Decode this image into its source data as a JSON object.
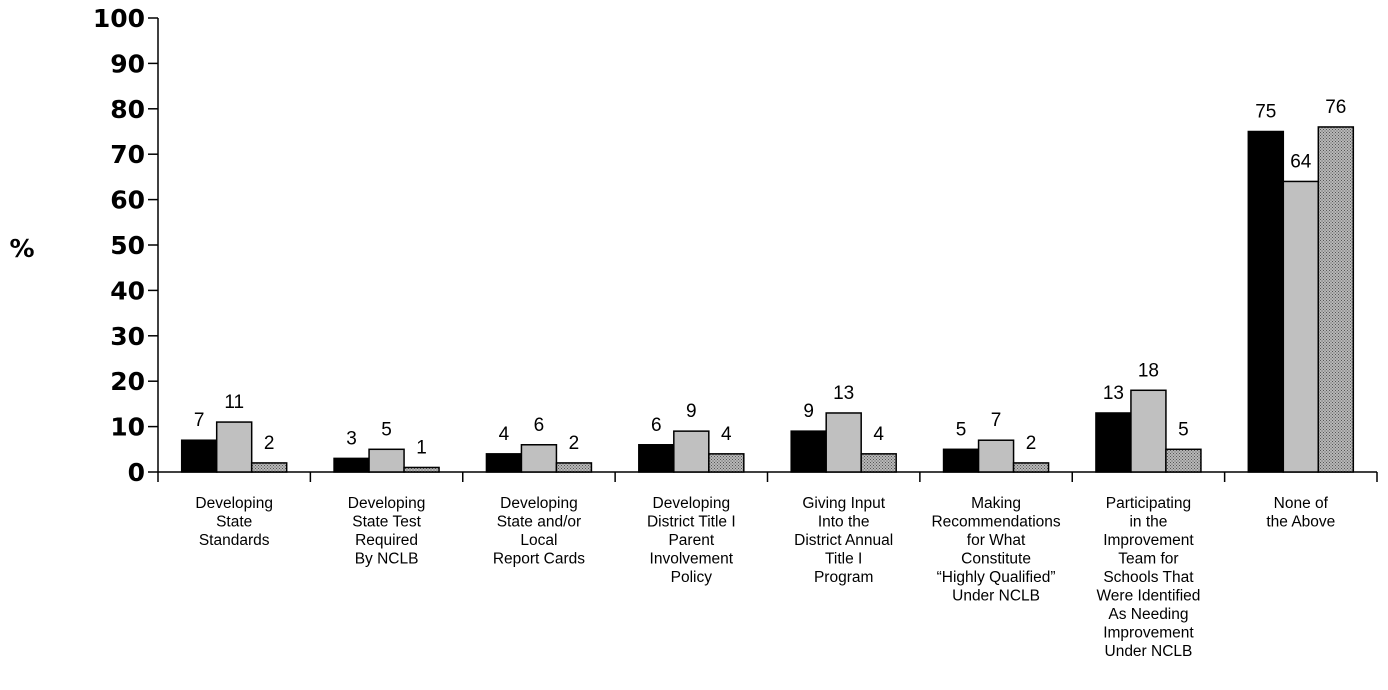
{
  "chart_data": {
    "type": "bar",
    "title": "",
    "xlabel": "",
    "ylabel": "%",
    "ylim": [
      0,
      100
    ],
    "yticks": [
      0,
      10,
      20,
      30,
      40,
      50,
      60,
      70,
      80,
      90,
      100
    ],
    "grid": false,
    "legend": "none",
    "categories": [
      "Developing State Standards",
      "Developing State Test Required By NCLB",
      "Developing State and/or Local Report Cards",
      "Developing District Title I Parent Involvement Policy",
      "Giving Input Into the District Annual Title I Program",
      "Making Recommendations for What Constitute “Highly Qualified” Under NCLB",
      "Participating in the Improvement Team for Schools That Were Identified As Needing Improvement Under NCLB",
      "None of the Above"
    ],
    "category_lines": [
      [
        "Developing",
        "State",
        "Standards"
      ],
      [
        "Developing",
        "State Test",
        "Required",
        "By NCLB"
      ],
      [
        "Developing",
        "State and/or",
        "Local",
        "Report Cards"
      ],
      [
        "Developing",
        "District Title I",
        "Parent",
        "Involvement",
        "Policy"
      ],
      [
        "Giving Input",
        "Into the",
        "District Annual",
        "Title I",
        "Program"
      ],
      [
        "Making",
        "Recommendations",
        "for What",
        "Constitute",
        "“Highly Qualified”",
        "Under NCLB"
      ],
      [
        "Participating",
        "in the",
        "Improvement",
        "Team for",
        "Schools That",
        "Were Identified",
        "As Needing",
        "Improvement",
        "Under NCLB"
      ],
      [
        "None of",
        "the Above"
      ]
    ],
    "series": [
      {
        "values": [
          7,
          3,
          4,
          6,
          9,
          5,
          13,
          75
        ],
        "color": "#000000",
        "fill": "solid"
      },
      {
        "values": [
          11,
          5,
          6,
          9,
          13,
          7,
          18,
          64
        ],
        "color": "#c0c0c0",
        "fill": "solid"
      },
      {
        "values": [
          2,
          1,
          2,
          4,
          4,
          2,
          5,
          76
        ],
        "color": "#a8a8a8",
        "fill": "hatched"
      }
    ]
  }
}
